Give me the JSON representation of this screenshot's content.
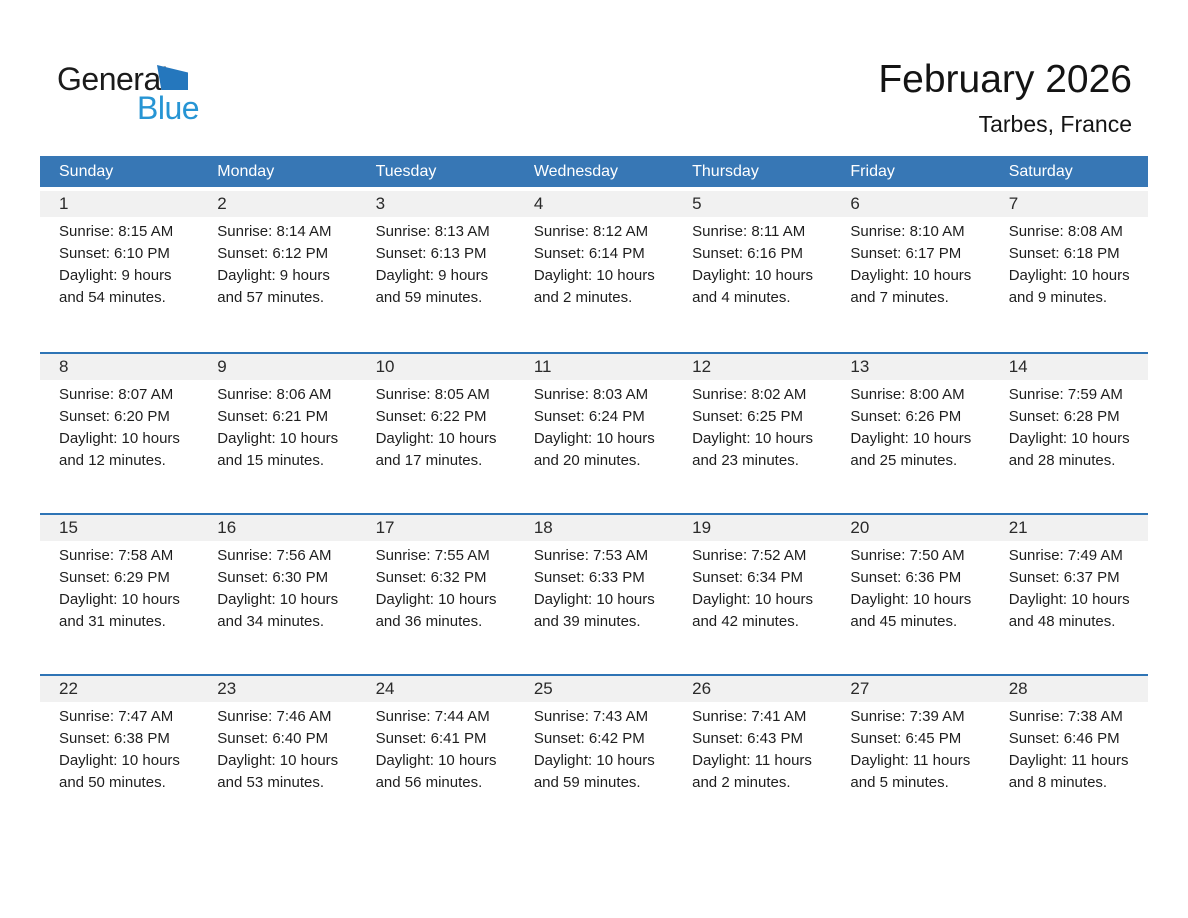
{
  "logo": {
    "general": "General",
    "blue": "Blue"
  },
  "header": {
    "month_year": "February 2026",
    "location": "Tarbes, France"
  },
  "weekdays": [
    "Sunday",
    "Monday",
    "Tuesday",
    "Wednesday",
    "Thursday",
    "Friday",
    "Saturday"
  ],
  "colors": {
    "header_bg": "#3777B5",
    "week_border": "#2E74B5",
    "strip_bg": "#F1F1F1",
    "logo_blue": "#2795D4",
    "logo_triangle": "#2577BD"
  },
  "weeks": [
    [
      {
        "num": "1",
        "sunrise": "Sunrise: 8:15 AM",
        "sunset": "Sunset: 6:10 PM",
        "daylight1": "Daylight: 9 hours",
        "daylight2": "and 54 minutes."
      },
      {
        "num": "2",
        "sunrise": "Sunrise: 8:14 AM",
        "sunset": "Sunset: 6:12 PM",
        "daylight1": "Daylight: 9 hours",
        "daylight2": "and 57 minutes."
      },
      {
        "num": "3",
        "sunrise": "Sunrise: 8:13 AM",
        "sunset": "Sunset: 6:13 PM",
        "daylight1": "Daylight: 9 hours",
        "daylight2": "and 59 minutes."
      },
      {
        "num": "4",
        "sunrise": "Sunrise: 8:12 AM",
        "sunset": "Sunset: 6:14 PM",
        "daylight1": "Daylight: 10 hours",
        "daylight2": "and 2 minutes."
      },
      {
        "num": "5",
        "sunrise": "Sunrise: 8:11 AM",
        "sunset": "Sunset: 6:16 PM",
        "daylight1": "Daylight: 10 hours",
        "daylight2": "and 4 minutes."
      },
      {
        "num": "6",
        "sunrise": "Sunrise: 8:10 AM",
        "sunset": "Sunset: 6:17 PM",
        "daylight1": "Daylight: 10 hours",
        "daylight2": "and 7 minutes."
      },
      {
        "num": "7",
        "sunrise": "Sunrise: 8:08 AM",
        "sunset": "Sunset: 6:18 PM",
        "daylight1": "Daylight: 10 hours",
        "daylight2": "and 9 minutes."
      }
    ],
    [
      {
        "num": "8",
        "sunrise": "Sunrise: 8:07 AM",
        "sunset": "Sunset: 6:20 PM",
        "daylight1": "Daylight: 10 hours",
        "daylight2": "and 12 minutes."
      },
      {
        "num": "9",
        "sunrise": "Sunrise: 8:06 AM",
        "sunset": "Sunset: 6:21 PM",
        "daylight1": "Daylight: 10 hours",
        "daylight2": "and 15 minutes."
      },
      {
        "num": "10",
        "sunrise": "Sunrise: 8:05 AM",
        "sunset": "Sunset: 6:22 PM",
        "daylight1": "Daylight: 10 hours",
        "daylight2": "and 17 minutes."
      },
      {
        "num": "11",
        "sunrise": "Sunrise: 8:03 AM",
        "sunset": "Sunset: 6:24 PM",
        "daylight1": "Daylight: 10 hours",
        "daylight2": "and 20 minutes."
      },
      {
        "num": "12",
        "sunrise": "Sunrise: 8:02 AM",
        "sunset": "Sunset: 6:25 PM",
        "daylight1": "Daylight: 10 hours",
        "daylight2": "and 23 minutes."
      },
      {
        "num": "13",
        "sunrise": "Sunrise: 8:00 AM",
        "sunset": "Sunset: 6:26 PM",
        "daylight1": "Daylight: 10 hours",
        "daylight2": "and 25 minutes."
      },
      {
        "num": "14",
        "sunrise": "Sunrise: 7:59 AM",
        "sunset": "Sunset: 6:28 PM",
        "daylight1": "Daylight: 10 hours",
        "daylight2": "and 28 minutes."
      }
    ],
    [
      {
        "num": "15",
        "sunrise": "Sunrise: 7:58 AM",
        "sunset": "Sunset: 6:29 PM",
        "daylight1": "Daylight: 10 hours",
        "daylight2": "and 31 minutes."
      },
      {
        "num": "16",
        "sunrise": "Sunrise: 7:56 AM",
        "sunset": "Sunset: 6:30 PM",
        "daylight1": "Daylight: 10 hours",
        "daylight2": "and 34 minutes."
      },
      {
        "num": "17",
        "sunrise": "Sunrise: 7:55 AM",
        "sunset": "Sunset: 6:32 PM",
        "daylight1": "Daylight: 10 hours",
        "daylight2": "and 36 minutes."
      },
      {
        "num": "18",
        "sunrise": "Sunrise: 7:53 AM",
        "sunset": "Sunset: 6:33 PM",
        "daylight1": "Daylight: 10 hours",
        "daylight2": "and 39 minutes."
      },
      {
        "num": "19",
        "sunrise": "Sunrise: 7:52 AM",
        "sunset": "Sunset: 6:34 PM",
        "daylight1": "Daylight: 10 hours",
        "daylight2": "and 42 minutes."
      },
      {
        "num": "20",
        "sunrise": "Sunrise: 7:50 AM",
        "sunset": "Sunset: 6:36 PM",
        "daylight1": "Daylight: 10 hours",
        "daylight2": "and 45 minutes."
      },
      {
        "num": "21",
        "sunrise": "Sunrise: 7:49 AM",
        "sunset": "Sunset: 6:37 PM",
        "daylight1": "Daylight: 10 hours",
        "daylight2": "and 48 minutes."
      }
    ],
    [
      {
        "num": "22",
        "sunrise": "Sunrise: 7:47 AM",
        "sunset": "Sunset: 6:38 PM",
        "daylight1": "Daylight: 10 hours",
        "daylight2": "and 50 minutes."
      },
      {
        "num": "23",
        "sunrise": "Sunrise: 7:46 AM",
        "sunset": "Sunset: 6:40 PM",
        "daylight1": "Daylight: 10 hours",
        "daylight2": "and 53 minutes."
      },
      {
        "num": "24",
        "sunrise": "Sunrise: 7:44 AM",
        "sunset": "Sunset: 6:41 PM",
        "daylight1": "Daylight: 10 hours",
        "daylight2": "and 56 minutes."
      },
      {
        "num": "25",
        "sunrise": "Sunrise: 7:43 AM",
        "sunset": "Sunset: 6:42 PM",
        "daylight1": "Daylight: 10 hours",
        "daylight2": "and 59 minutes."
      },
      {
        "num": "26",
        "sunrise": "Sunrise: 7:41 AM",
        "sunset": "Sunset: 6:43 PM",
        "daylight1": "Daylight: 11 hours",
        "daylight2": "and 2 minutes."
      },
      {
        "num": "27",
        "sunrise": "Sunrise: 7:39 AM",
        "sunset": "Sunset: 6:45 PM",
        "daylight1": "Daylight: 11 hours",
        "daylight2": "and 5 minutes."
      },
      {
        "num": "28",
        "sunrise": "Sunrise: 7:38 AM",
        "sunset": "Sunset: 6:46 PM",
        "daylight1": "Daylight: 11 hours",
        "daylight2": "and 8 minutes."
      }
    ]
  ]
}
